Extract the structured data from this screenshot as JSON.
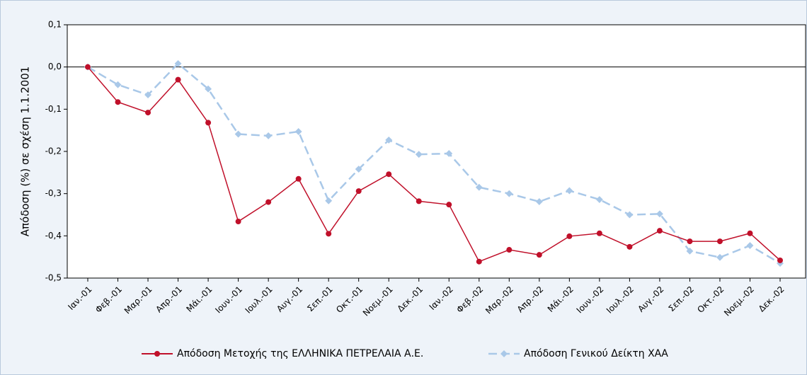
{
  "chart_data": {
    "type": "line",
    "y_label": "Απόδοση (%) σε σχέση 1.1.2001",
    "categories": [
      "Ιαν.-01",
      "Φεβ.-01",
      "Μαρ.-01",
      "Απρ.-01",
      "Μάι.-01",
      "Ιουν.-01",
      "Ιουλ.-01",
      "Αυγ.-01",
      "Σεπ.-01",
      "Οκτ.-01",
      "Νοεμ.-01",
      "Δεκ.-01",
      "Ιαν.-02",
      "Φεβ.-02",
      "Μαρ.-02",
      "Απρ.-02",
      "Μάι.-02",
      "Ιουν.-02",
      "Ιουλ.-02",
      "Αυγ.-02",
      "Σεπ.-02",
      "Οκτ.-02",
      "Νοεμ.-02",
      "Δεκ.-02"
    ],
    "series": [
      {
        "name": "Απόδοση Μετοχής της ΕΛΛΗΝΙΚΑ ΠΕΤΡΕΛΑΙΑ Α.Ε.",
        "color": "#c0102a",
        "dashed": false,
        "values": [
          0,
          -0.083,
          -0.108,
          -0.03,
          -0.132,
          -0.366,
          -0.32,
          -0.265,
          -0.395,
          -0.294,
          -0.254,
          -0.318,
          -0.326,
          -0.461,
          -0.433,
          -0.445,
          -0.401,
          -0.394,
          -0.426,
          -0.388,
          -0.413,
          -0.413,
          -0.394,
          -0.458
        ]
      },
      {
        "name": "Απόδοση Γενικού Δείκτη ΧΑΑ",
        "color": "#a9c8e8",
        "dashed": true,
        "values": [
          0,
          -0.042,
          -0.066,
          0.008,
          -0.052,
          -0.159,
          -0.163,
          -0.153,
          -0.317,
          -0.242,
          -0.173,
          -0.207,
          -0.205,
          -0.285,
          -0.3,
          -0.319,
          -0.293,
          -0.314,
          -0.35,
          -0.348,
          -0.436,
          -0.451,
          -0.423,
          -0.465
        ]
      }
    ],
    "ylim": [
      -0.5,
      0.1
    ],
    "yticks": [
      {
        "value": -0.5,
        "label": "-0,5"
      },
      {
        "value": -0.4,
        "label": "-0,4"
      },
      {
        "value": -0.3,
        "label": "-0,3"
      },
      {
        "value": -0.2,
        "label": "-0,2"
      },
      {
        "value": -0.1,
        "label": "-0,1"
      },
      {
        "value": 0,
        "label": "0,0"
      },
      {
        "value": 0.1,
        "label": "0,1"
      }
    ],
    "legend": "bottom"
  }
}
